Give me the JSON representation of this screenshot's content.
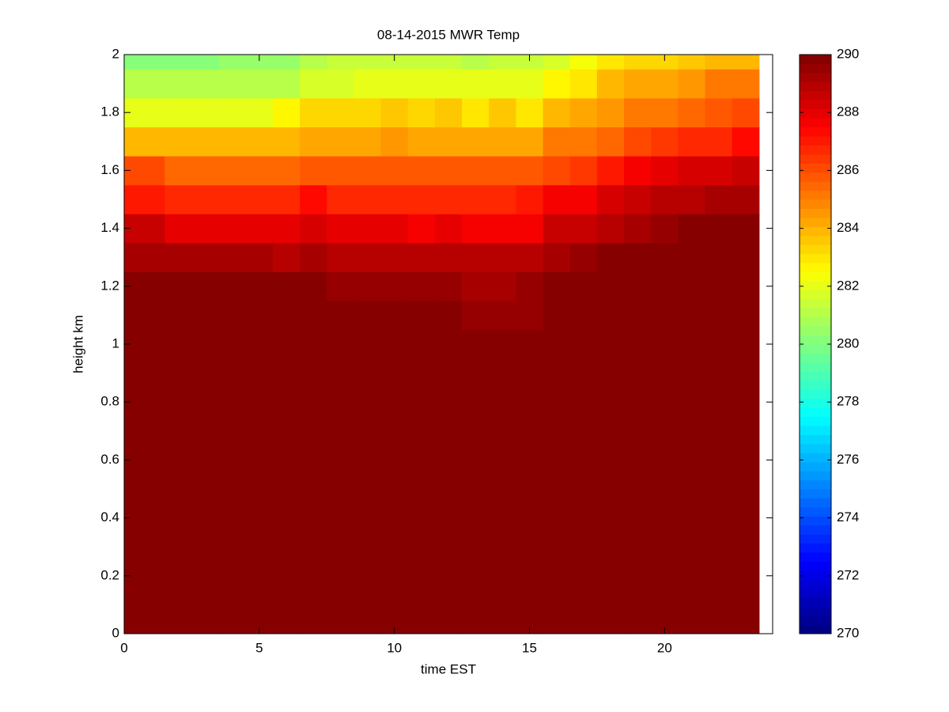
{
  "chart_data": {
    "type": "heatmap",
    "title": "08-14-2015 MWR Temp",
    "x_label": "time EST",
    "y_label": "height km",
    "colormap": "jet",
    "color_levels": 64,
    "x": [
      0,
      1.5,
      2.5,
      3.5,
      4.5,
      5.5,
      6.5,
      7.5,
      8.5,
      9.5,
      10.5,
      11.5,
      12.5,
      13.5,
      14.5,
      15.5,
      16.5,
      17.5,
      18.5,
      19.5,
      20.5,
      21.5,
      22.5,
      23.5
    ],
    "y": [
      0,
      1.05,
      1.15,
      1.25,
      1.35,
      1.45,
      1.55,
      1.65,
      1.75,
      1.85,
      1.95,
      2.05
    ],
    "z": [
      [
        291,
        291,
        291,
        291,
        291,
        291,
        291,
        291,
        291,
        291,
        291,
        291,
        291,
        291,
        291,
        291,
        291,
        291,
        291,
        291,
        291,
        291,
        291
      ],
      [
        291,
        291,
        291,
        291,
        291,
        291,
        291,
        291,
        291,
        291,
        291,
        291,
        289.5,
        289.5,
        289.5,
        291,
        291,
        291,
        291,
        291,
        291,
        291,
        291
      ],
      [
        290.5,
        290.5,
        290.5,
        290.5,
        290.5,
        289.7,
        290.3,
        289.6,
        289.6,
        289.6,
        289.4,
        289.4,
        289.2,
        289.2,
        289.5,
        291,
        291,
        291,
        291,
        291,
        291,
        291,
        291
      ],
      [
        289.2,
        289.3,
        289.3,
        289.3,
        289.3,
        289,
        289.2,
        289,
        289,
        289,
        288.8,
        288.8,
        288.8,
        288.8,
        288.8,
        289.3,
        289.6,
        290.5,
        290.5,
        290.5,
        290.5,
        290.5,
        290.5
      ],
      [
        288.5,
        288,
        288,
        288,
        288,
        288,
        288.3,
        288,
        288,
        288,
        287.8,
        288,
        287.8,
        287.8,
        287.8,
        288.5,
        288.5,
        289,
        289.3,
        289.6,
        290.5,
        290.5,
        290.5
      ],
      [
        287,
        286.8,
        286.8,
        286.8,
        286.8,
        286.8,
        287.3,
        286.8,
        286.8,
        286.8,
        286.8,
        286.8,
        286.8,
        286.8,
        287,
        287.5,
        287.8,
        288.3,
        288.6,
        289,
        289,
        289.3,
        289.3
      ],
      [
        286,
        285.5,
        285.5,
        285.5,
        285.5,
        285.5,
        285.7,
        285.7,
        285.7,
        285.7,
        285.7,
        285.7,
        285.7,
        285.7,
        285.7,
        286.2,
        286.5,
        287,
        287.7,
        288,
        288.2,
        288.2,
        288.5
      ],
      [
        284,
        284,
        284,
        284,
        284,
        284,
        284.2,
        284.2,
        284.2,
        284.5,
        284.2,
        284.2,
        284.2,
        284.2,
        284.2,
        285,
        285.2,
        285.5,
        286,
        286.5,
        286.8,
        286.8,
        287.3
      ],
      [
        282,
        282,
        282,
        282,
        282,
        282.7,
        283.2,
        283.2,
        283.2,
        283.5,
        283.2,
        283.5,
        283,
        283.5,
        283,
        284,
        284.3,
        284.5,
        285,
        285,
        285.5,
        285.8,
        286
      ],
      [
        281,
        281,
        281,
        281,
        281.2,
        281.2,
        281.6,
        281.6,
        282,
        282,
        282,
        282,
        282,
        282,
        282,
        282.6,
        283,
        284,
        284.2,
        284.2,
        284.5,
        285,
        285.3
      ],
      [
        280.2,
        280.2,
        280.2,
        280.4,
        280.4,
        280.4,
        281,
        281.5,
        281.5,
        281.5,
        281.5,
        281.3,
        281,
        281.5,
        281.5,
        281.8,
        282.3,
        283,
        283.2,
        283.2,
        283.5,
        283.8,
        284
      ]
    ],
    "xlim": [
      0,
      24
    ],
    "ylim": [
      0,
      2
    ],
    "xticks": [
      0,
      5,
      10,
      15,
      20
    ],
    "yticks": [
      0,
      0.2,
      0.4,
      0.6,
      0.8,
      1,
      1.2,
      1.4,
      1.6,
      1.8,
      2
    ],
    "clim": [
      270,
      290
    ],
    "cticks": [
      270,
      272,
      274,
      276,
      278,
      280,
      282,
      284,
      286,
      288,
      290
    ]
  }
}
